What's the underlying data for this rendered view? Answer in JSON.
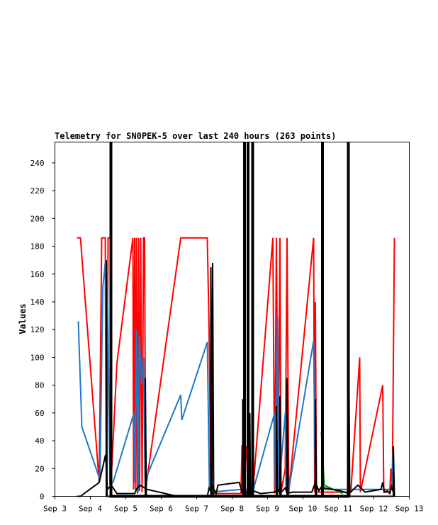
{
  "chart_data": {
    "type": "line",
    "title": "Telemetry for SN0PEK-5 over last 240 hours (263 points)",
    "xlabel": "",
    "ylabel": "Values",
    "x_ticks": [
      "Sep 3",
      "Sep 4",
      "Sep 5",
      "Sep 6",
      "Sep 7",
      "Sep 8",
      "Sep 9",
      "Sep 10",
      "Sep 11",
      "Sep 12",
      "Sep 13"
    ],
    "y_ticks": [
      0,
      20,
      40,
      60,
      80,
      100,
      120,
      140,
      160,
      180,
      200,
      220,
      240
    ],
    "xlim": [
      0,
      10
    ],
    "ylim": [
      0,
      255
    ],
    "x_unit": "days since Sep 3",
    "grid": false,
    "series": [
      {
        "color": "#ff0000",
        "width": 2,
        "points": [
          [
            0.62,
            186
          ],
          [
            0.72,
            186
          ],
          [
            1.25,
            10
          ],
          [
            1.32,
            186
          ],
          [
            1.42,
            186
          ],
          [
            1.46,
            2
          ],
          [
            1.5,
            186
          ],
          [
            1.56,
            186
          ],
          [
            1.58,
            8
          ],
          [
            1.75,
            96
          ],
          [
            2.2,
            186
          ],
          [
            2.22,
            5
          ],
          [
            2.25,
            186
          ],
          [
            2.28,
            3
          ],
          [
            2.3,
            186
          ],
          [
            2.33,
            2
          ],
          [
            2.36,
            186
          ],
          [
            2.39,
            4
          ],
          [
            2.42,
            186
          ],
          [
            2.46,
            3
          ],
          [
            2.5,
            186
          ],
          [
            2.53,
            186
          ],
          [
            2.56,
            5
          ],
          [
            3.55,
            186
          ],
          [
            4.3,
            186
          ],
          [
            4.35,
            120
          ],
          [
            4.4,
            2
          ],
          [
            5.25,
            2
          ],
          [
            5.28,
            37
          ],
          [
            5.3,
            2
          ],
          [
            5.4,
            36
          ],
          [
            5.45,
            3
          ],
          [
            5.6,
            8
          ],
          [
            6.15,
            186
          ],
          [
            6.2,
            2
          ],
          [
            6.25,
            186
          ],
          [
            6.3,
            3
          ],
          [
            6.35,
            186
          ],
          [
            6.38,
            3
          ],
          [
            6.5,
            20
          ],
          [
            6.55,
            186
          ],
          [
            6.6,
            3
          ],
          [
            7.3,
            186
          ],
          [
            7.33,
            3
          ],
          [
            7.35,
            140
          ],
          [
            7.38,
            3
          ],
          [
            7.8,
            3
          ],
          [
            8.35,
            3
          ],
          [
            8.6,
            100
          ],
          [
            8.62,
            3
          ],
          [
            9.25,
            80
          ],
          [
            9.28,
            3
          ],
          [
            9.45,
            3
          ],
          [
            9.48,
            20
          ],
          [
            9.52,
            5
          ],
          [
            9.58,
            186
          ]
        ]
      },
      {
        "color": "#009900",
        "width": 2,
        "points": [
          [
            7.52,
            46
          ],
          [
            7.6,
            8
          ],
          [
            8.12,
            2
          ]
        ]
      },
      {
        "color": "#1f78c8",
        "width": 2,
        "points": [
          [
            0.66,
            126
          ],
          [
            0.76,
            50
          ],
          [
            1.27,
            12
          ],
          [
            1.35,
            150
          ],
          [
            1.42,
            168
          ],
          [
            1.45,
            10
          ],
          [
            1.48,
            160
          ],
          [
            1.55,
            9
          ],
          [
            1.64,
            10
          ],
          [
            2.23,
            60
          ],
          [
            2.26,
            10
          ],
          [
            2.3,
            120
          ],
          [
            2.35,
            3
          ],
          [
            2.38,
            115
          ],
          [
            2.45,
            80
          ],
          [
            2.5,
            100
          ],
          [
            2.55,
            3
          ],
          [
            2.6,
            15
          ],
          [
            3.55,
            73
          ],
          [
            3.58,
            55
          ],
          [
            4.3,
            111
          ],
          [
            4.36,
            5
          ],
          [
            4.4,
            3
          ],
          [
            5.25,
            5
          ],
          [
            5.6,
            5
          ],
          [
            6.2,
            60
          ],
          [
            6.22,
            5
          ],
          [
            6.28,
            130
          ],
          [
            6.32,
            5
          ],
          [
            6.5,
            60
          ],
          [
            6.52,
            5
          ],
          [
            6.6,
            5
          ],
          [
            7.3,
            112
          ],
          [
            7.35,
            5
          ],
          [
            8.6,
            5
          ],
          [
            9.25,
            5
          ],
          [
            9.5,
            5
          ],
          [
            9.55,
            36
          ]
        ]
      },
      {
        "color": "#000000",
        "width": 2,
        "points": [
          [
            0.62,
            0
          ],
          [
            0.72,
            0
          ],
          [
            1.25,
            10
          ],
          [
            1.43,
            30
          ],
          [
            1.48,
            5
          ],
          [
            1.59,
            8
          ],
          [
            1.75,
            2
          ],
          [
            2.25,
            2
          ],
          [
            2.3,
            5
          ],
          [
            2.4,
            8
          ],
          [
            2.6,
            5
          ],
          [
            3.45,
            0
          ],
          [
            4.3,
            0
          ],
          [
            4.35,
            6
          ],
          [
            4.42,
            3
          ],
          [
            4.45,
            7
          ],
          [
            4.55,
            2
          ],
          [
            4.6,
            8
          ],
          [
            5.2,
            10
          ],
          [
            5.3,
            2
          ],
          [
            5.35,
            7
          ],
          [
            5.4,
            2
          ],
          [
            5.6,
            4
          ],
          [
            5.8,
            2
          ],
          [
            6.2,
            3
          ],
          [
            6.3,
            5
          ],
          [
            6.35,
            2
          ],
          [
            6.5,
            6
          ],
          [
            6.55,
            2
          ],
          [
            6.7,
            3
          ],
          [
            7.25,
            3
          ],
          [
            7.35,
            10
          ],
          [
            7.45,
            4
          ],
          [
            7.55,
            8
          ],
          [
            7.6,
            6
          ],
          [
            8.05,
            4
          ],
          [
            8.3,
            2
          ],
          [
            8.55,
            8
          ],
          [
            8.75,
            3
          ],
          [
            9.2,
            5
          ],
          [
            9.25,
            10
          ],
          [
            9.3,
            3
          ],
          [
            9.38,
            4
          ],
          [
            9.45,
            2
          ],
          [
            9.5,
            7
          ],
          [
            9.55,
            3
          ]
        ]
      },
      {
        "color": "#000000",
        "width": 4,
        "points": [
          [
            1.58,
            0
          ],
          [
            1.58,
            255
          ],
          [
            1.58,
            0
          ],
          [
            5.35,
            0
          ],
          [
            5.35,
            255
          ],
          [
            5.35,
            0
          ],
          [
            5.45,
            0
          ],
          [
            5.45,
            255
          ],
          [
            5.45,
            0
          ],
          [
            5.58,
            0
          ],
          [
            5.58,
            255
          ],
          [
            5.58,
            0
          ],
          [
            7.55,
            0
          ],
          [
            7.55,
            255
          ],
          [
            7.55,
            0
          ],
          [
            8.28,
            0
          ],
          [
            8.28,
            255
          ],
          [
            8.28,
            0
          ]
        ]
      },
      {
        "color": "#000000",
        "width": 2,
        "points": [
          [
            4.4,
            0
          ],
          [
            4.4,
            165
          ],
          [
            4.43,
            0
          ],
          [
            4.45,
            168
          ],
          [
            4.48,
            0
          ],
          [
            1.45,
            0
          ],
          [
            1.45,
            170
          ],
          [
            1.47,
            0
          ],
          [
            5.5,
            0
          ],
          [
            5.5,
            60
          ],
          [
            5.52,
            0
          ],
          [
            7.35,
            0
          ],
          [
            7.35,
            70
          ],
          [
            7.38,
            0
          ],
          [
            8.3,
            0
          ],
          [
            8.3,
            78
          ],
          [
            8.32,
            0
          ],
          [
            9.55,
            0
          ],
          [
            9.55,
            36
          ],
          [
            9.58,
            0
          ],
          [
            5.3,
            0
          ],
          [
            5.3,
            70
          ],
          [
            5.32,
            0
          ],
          [
            2.55,
            0
          ],
          [
            2.55,
            85
          ],
          [
            2.58,
            0
          ],
          [
            6.25,
            0
          ],
          [
            6.25,
            65
          ],
          [
            6.28,
            0
          ],
          [
            6.35,
            0
          ],
          [
            6.35,
            72
          ],
          [
            6.38,
            0
          ],
          [
            6.55,
            0
          ],
          [
            6.55,
            85
          ],
          [
            6.58,
            0
          ]
        ]
      }
    ]
  }
}
